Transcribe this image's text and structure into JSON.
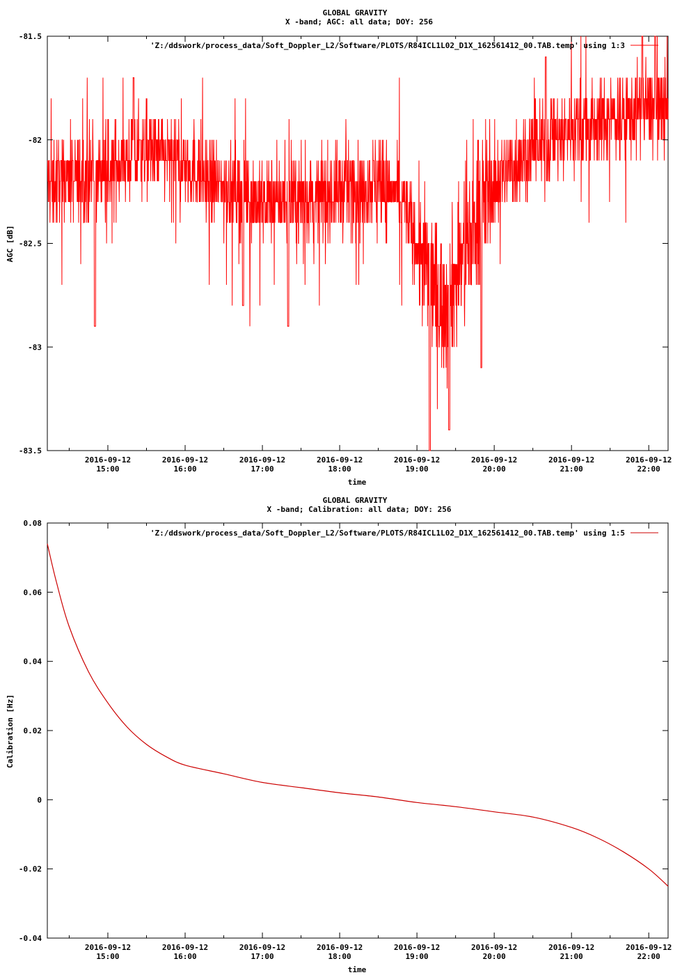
{
  "colors": {
    "agc_line": "#ff0000",
    "cal_line": "#cc0000",
    "axes": "#000000",
    "background": "#ffffff"
  },
  "chart_data": [
    {
      "type": "line",
      "title": "GLOBAL GRAVITY",
      "subtitle": "X -band; AGC: all data; DOY: 256",
      "xlabel": "time",
      "ylabel": "AGC [dB]",
      "ylim": [
        -83.5,
        -81.5
      ],
      "yticks": [
        "-81.5",
        "-82",
        "-82.5",
        "-83",
        "-83.5"
      ],
      "ytick_values": [
        -81.5,
        -82,
        -82.5,
        -83,
        -83.5
      ],
      "xlim": [
        "2016-09-12 14:13",
        "2016-09-12 22:15"
      ],
      "xtick_dates": [
        "2016-09-12",
        "2016-09-12",
        "2016-09-12",
        "2016-09-12",
        "2016-09-12",
        "2016-09-12",
        "2016-09-12",
        "2016-09-12"
      ],
      "xtick_times": [
        "15:00",
        "16:00",
        "17:00",
        "18:00",
        "19:00",
        "20:00",
        "21:00",
        "22:00"
      ],
      "legend_position": "top-right",
      "grid": false,
      "series": [
        {
          "name": "'Z:/ddswork/process_data/Soft_Doppler_L2/Software/PLOTS/R84ICL1L02_D1X_162561412_00.TAB.temp' using 1:3",
          "approx_level": [
            [
              "2016-09-12 14:13",
              -82.2
            ],
            [
              "2016-09-12 14:30",
              -82.2
            ],
            [
              "2016-09-12 15:00",
              -82.15
            ],
            [
              "2016-09-12 15:30",
              -82.05
            ],
            [
              "2016-09-12 16:00",
              -82.1
            ],
            [
              "2016-09-12 16:20",
              -82.2
            ],
            [
              "2016-09-12 16:40",
              -82.25
            ],
            [
              "2016-09-12 17:00",
              -82.3
            ],
            [
              "2016-09-12 17:30",
              -82.3
            ],
            [
              "2016-09-12 18:00",
              -82.25
            ],
            [
              "2016-09-12 18:30",
              -82.2
            ],
            [
              "2016-09-12 18:50",
              -82.3
            ],
            [
              "2016-09-12 19:05",
              -82.6
            ],
            [
              "2016-09-12 19:20",
              -82.8
            ],
            [
              "2016-09-12 19:35",
              -82.6
            ],
            [
              "2016-09-12 19:50",
              -82.3
            ],
            [
              "2016-09-12 20:10",
              -82.15
            ],
            [
              "2016-09-12 20:30",
              -82.05
            ],
            [
              "2016-09-12 21:00",
              -81.95
            ],
            [
              "2016-09-12 21:30",
              -81.9
            ],
            [
              "2016-09-12 22:00",
              -81.85
            ],
            [
              "2016-09-12 22:15",
              -81.85
            ]
          ],
          "approx_min": [
            [
              "2016-09-12 14:50",
              -82.9
            ],
            [
              "2016-09-12 16:45",
              -82.8
            ],
            [
              "2016-09-12 17:20",
              -82.9
            ],
            [
              "2016-09-12 19:10",
              -83.5
            ],
            [
              "2016-09-12 19:25",
              -83.4
            ],
            [
              "2016-09-12 19:50",
              -83.1
            ]
          ],
          "approx_max": [
            [
              "2016-09-12 15:20",
              -81.7
            ],
            [
              "2016-09-12 20:40",
              -81.6
            ],
            [
              "2016-09-12 21:55",
              -81.5
            ],
            [
              "2016-09-12 22:05",
              -81.5
            ]
          ]
        }
      ]
    },
    {
      "type": "line",
      "title": "GLOBAL GRAVITY",
      "subtitle": "X -band; Calibration: all data; DOY: 256",
      "xlabel": "time",
      "ylabel": "Calibration [Hz]",
      "ylim": [
        -0.04,
        0.08
      ],
      "yticks": [
        "0.08",
        "0.06",
        "0.04",
        "0.02",
        "0",
        "-0.02",
        "-0.04"
      ],
      "ytick_values": [
        0.08,
        0.06,
        0.04,
        0.02,
        0,
        -0.02,
        -0.04
      ],
      "xlim": [
        "2016-09-12 14:13",
        "2016-09-12 22:15"
      ],
      "xtick_dates": [
        "2016-09-12",
        "2016-09-12",
        "2016-09-12",
        "2016-09-12",
        "2016-09-12",
        "2016-09-12",
        "2016-09-12",
        "2016-09-12"
      ],
      "xtick_times": [
        "15:00",
        "16:00",
        "17:00",
        "18:00",
        "19:00",
        "20:00",
        "21:00",
        "22:00"
      ],
      "legend_position": "top-right",
      "grid": false,
      "series": [
        {
          "name": "'Z:/ddswork/process_data/Soft_Doppler_L2/Software/PLOTS/R84ICL1L02_D1X_162561412_00.TAB.temp' using 1:5",
          "points": [
            [
              "2016-09-12 14:13",
              0.074
            ],
            [
              "2016-09-12 14:20",
              0.063
            ],
            [
              "2016-09-12 14:30",
              0.05
            ],
            [
              "2016-09-12 14:45",
              0.037
            ],
            [
              "2016-09-12 15:00",
              0.028
            ],
            [
              "2016-09-12 15:15",
              0.021
            ],
            [
              "2016-09-12 15:30",
              0.016
            ],
            [
              "2016-09-12 15:45",
              0.0125
            ],
            [
              "2016-09-12 16:00",
              0.01
            ],
            [
              "2016-09-12 16:30",
              0.0075
            ],
            [
              "2016-09-12 17:00",
              0.005
            ],
            [
              "2016-09-12 17:30",
              0.0035
            ],
            [
              "2016-09-12 18:00",
              0.002
            ],
            [
              "2016-09-12 18:30",
              0.0008
            ],
            [
              "2016-09-12 19:00",
              -0.0008
            ],
            [
              "2016-09-12 19:30",
              -0.002
            ],
            [
              "2016-09-12 20:00",
              -0.0035
            ],
            [
              "2016-09-12 20:30",
              -0.005
            ],
            [
              "2016-09-12 21:00",
              -0.008
            ],
            [
              "2016-09-12 21:20",
              -0.011
            ],
            [
              "2016-09-12 21:40",
              -0.015
            ],
            [
              "2016-09-12 22:00",
              -0.02
            ],
            [
              "2016-09-12 22:15",
              -0.025
            ]
          ]
        }
      ]
    }
  ]
}
